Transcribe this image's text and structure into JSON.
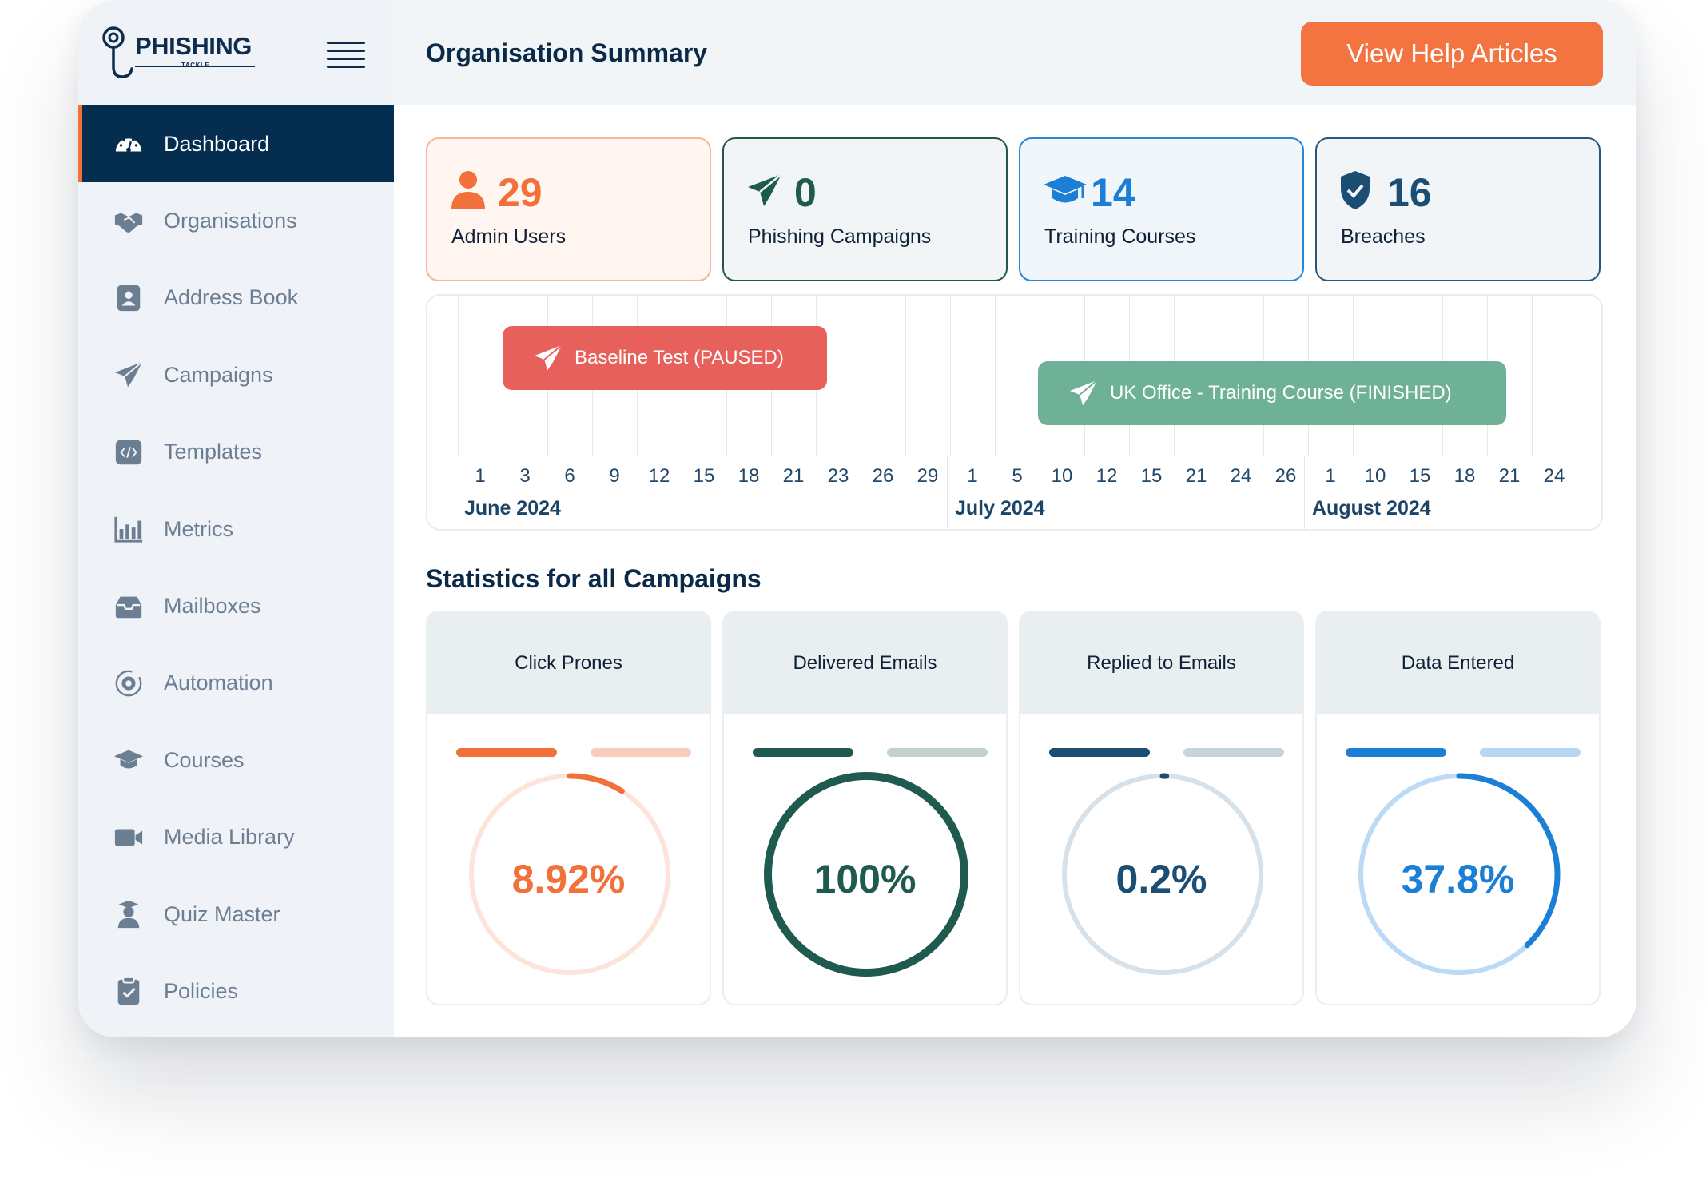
{
  "brand": {
    "name": "PHISHING",
    "sub": "TACKLE"
  },
  "sidebar": {
    "items": [
      {
        "label": "Dashboard",
        "icon": "dashboard-gauge-icon",
        "active": true
      },
      {
        "label": "Organisations",
        "icon": "handshake-icon"
      },
      {
        "label": "Address Book",
        "icon": "address-book-icon"
      },
      {
        "label": "Campaigns",
        "icon": "paper-plane-icon"
      },
      {
        "label": "Templates",
        "icon": "code-file-icon"
      },
      {
        "label": "Metrics",
        "icon": "bar-chart-icon"
      },
      {
        "label": "Mailboxes",
        "icon": "inbox-icon"
      },
      {
        "label": "Automation",
        "icon": "gear-cycle-icon"
      },
      {
        "label": "Courses",
        "icon": "graduation-cap-icon"
      },
      {
        "label": "Media Library",
        "icon": "video-camera-icon"
      },
      {
        "label": "Quiz Master",
        "icon": "graduate-user-icon"
      },
      {
        "label": "Policies",
        "icon": "clipboard-check-icon"
      }
    ]
  },
  "header": {
    "title": "Organisation Summary",
    "help_button": "View Help Articles"
  },
  "stats": [
    {
      "value": "29",
      "label": "Admin Users",
      "icon": "user-icon",
      "color": "#f2703a",
      "bg": "#fff5f1",
      "border": "#f6b79c"
    },
    {
      "value": "0",
      "label": "Phishing Campaigns",
      "icon": "paper-plane-icon",
      "color": "#1f5a4e",
      "bg": "#f1f5f5",
      "border": "#24574c"
    },
    {
      "value": "14",
      "label": "Training Courses",
      "icon": "graduation-cap-icon",
      "color": "#1b7fd6",
      "bg": "#f1f6fb",
      "border": "#2a86d6"
    },
    {
      "value": "16",
      "label": "Breaches",
      "icon": "shield-check-icon",
      "color": "#1c4d73",
      "bg": "#f2f5f8",
      "border": "#28567c"
    }
  ],
  "timeline": {
    "ticks": [
      "1",
      "3",
      "6",
      "9",
      "12",
      "15",
      "18",
      "21",
      "23",
      "26",
      "29",
      "1",
      "5",
      "10",
      "12",
      "15",
      "21",
      "24",
      "26",
      "1",
      "10",
      "15",
      "18",
      "21",
      "24"
    ],
    "months": [
      "June 2024",
      "July 2024",
      "August 2024"
    ],
    "events": [
      {
        "label": "Baseline Test (PAUSED)",
        "icon": "paper-plane-icon",
        "color": "#e8605b"
      },
      {
        "label": "UK Office - Training Course (FINISHED)",
        "icon": "paper-plane-icon",
        "color": "#6fb197"
      }
    ]
  },
  "statistics": {
    "title": "Statistics for all Campaigns",
    "cards": [
      {
        "title": "Click Prones",
        "value": "8.92%",
        "percent": 8.92,
        "color": "#f2703a",
        "track": "#fde4da",
        "legend_light": "#f9cdbb"
      },
      {
        "title": "Delivered Emails",
        "value": "100%",
        "percent": 100,
        "color": "#1f5a4e",
        "track": "#c2d1cd",
        "legend_light": "#c2d1cd"
      },
      {
        "title": "Replied to Emails",
        "value": "0.2%",
        "percent": 0.2,
        "color": "#1c4d73",
        "track": "#d6e1e9",
        "legend_light": "#c8d4dc"
      },
      {
        "title": "Data Entered",
        "value": "37.8%",
        "percent": 37.8,
        "color": "#1b7fd6",
        "track": "#bcdaf5",
        "legend_light": "#b7d8f5"
      }
    ]
  }
}
